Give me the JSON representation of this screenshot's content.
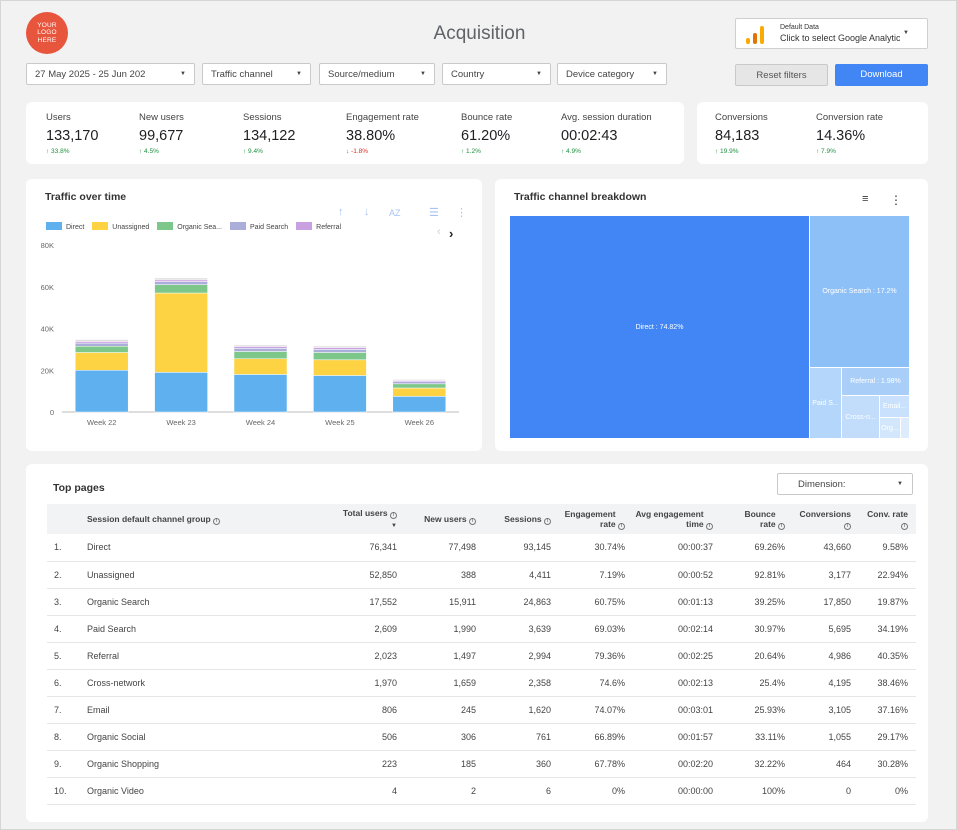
{
  "logo": {
    "text": "YOUR LOGO HERE",
    "color": "#e8553d"
  },
  "page_title": "Acquisition",
  "data_source": {
    "line1": "Default Data",
    "line2": "Click to select Google Analytics"
  },
  "filters": {
    "date_range": "27 May 2025 - 25 Jun 2025",
    "traffic_channel": "Traffic channel",
    "source_medium": "Source/medium",
    "country": "Country",
    "device_category": "Device category"
  },
  "buttons": {
    "reset": "Reset filters",
    "download": "Download"
  },
  "kpis": [
    {
      "label": "Users",
      "value": "133,170",
      "delta": "↑ 33.8%",
      "dir": "up"
    },
    {
      "label": "New users",
      "value": "99,677",
      "delta": "↑ 4.5%",
      "dir": "up"
    },
    {
      "label": "Sessions",
      "value": "134,122",
      "delta": "↑ 9.4%",
      "dir": "up"
    },
    {
      "label": "Engagement rate",
      "value": "38.80%",
      "delta": "↓ -1.8%",
      "dir": "down"
    },
    {
      "label": "Bounce rate",
      "value": "61.20%",
      "delta": "↑ 1.2%",
      "dir": "up"
    },
    {
      "label": "Avg. session duration",
      "value": "00:02:43",
      "delta": "↑ 4.9%",
      "dir": "up"
    }
  ],
  "conv_kpis": [
    {
      "label": "Conversions",
      "value": "84,183",
      "delta": "↑ 19.9%",
      "dir": "up"
    },
    {
      "label": "Conversion rate",
      "value": "14.36%",
      "delta": "↑ 7.9%",
      "dir": "up"
    }
  ],
  "traffic_over_time": {
    "title": "Traffic over time"
  },
  "treemap": {
    "title": "Traffic channel breakdown",
    "labels": {
      "direct": "Direct : 74.82%",
      "organic": "Organic Search : 17.2%",
      "referral": "Referral : 1.98%",
      "paid": "Paid S...",
      "cross": "Cross-n...",
      "email": "Email...",
      "org2": "Org..."
    }
  },
  "chart_data": {
    "type": "bar",
    "stacked": true,
    "categories": [
      "Week 22",
      "Week 23",
      "Week 24",
      "Week 25",
      "Week 26"
    ],
    "ylim": [
      0,
      80000
    ],
    "yticks": [
      "0",
      "20K",
      "40K",
      "60K",
      "80K"
    ],
    "series": [
      {
        "name": "Direct",
        "color": "#5eb0ee",
        "values": [
          20000,
          19000,
          18000,
          17500,
          7500
        ]
      },
      {
        "name": "Unassigned",
        "color": "#fdd343",
        "values": [
          8500,
          38000,
          7500,
          7500,
          4000
        ]
      },
      {
        "name": "Organic Sea...",
        "color": "#7dc78a",
        "values": [
          3000,
          4000,
          3500,
          3500,
          2000
        ]
      },
      {
        "name": "Paid Search",
        "color": "#aaaed9",
        "values": [
          1500,
          1500,
          1500,
          1500,
          1000
        ]
      },
      {
        "name": "Referral",
        "color": "#c9a0e0",
        "values": [
          800,
          800,
          900,
          900,
          600
        ]
      },
      {
        "name": "",
        "color": "#dddddd",
        "values": [
          900,
          900,
          700,
          700,
          500
        ]
      }
    ]
  },
  "top_pages": {
    "title": "Top pages",
    "dimension_label": "Dimension:",
    "headers": [
      "Session default channel group",
      "Total users",
      "New users",
      "Sessions",
      "Engagement rate",
      "Avg engagement time",
      "Bounce rate",
      "Conversions",
      "Conv. rate"
    ],
    "rows": [
      [
        "1.",
        "Direct",
        "76,341",
        "77,498",
        "93,145",
        "30.74%",
        "00:00:37",
        "69.26%",
        "43,660",
        "9.58%"
      ],
      [
        "2.",
        "Unassigned",
        "52,850",
        "388",
        "4,411",
        "7.19%",
        "00:00:52",
        "92.81%",
        "3,177",
        "22.94%"
      ],
      [
        "3.",
        "Organic Search",
        "17,552",
        "15,911",
        "24,863",
        "60.75%",
        "00:01:13",
        "39.25%",
        "17,850",
        "19.87%"
      ],
      [
        "4.",
        "Paid Search",
        "2,609",
        "1,990",
        "3,639",
        "69.03%",
        "00:02:14",
        "30.97%",
        "5,695",
        "34.19%"
      ],
      [
        "5.",
        "Referral",
        "2,023",
        "1,497",
        "2,994",
        "79.36%",
        "00:02:25",
        "20.64%",
        "4,986",
        "40.35%"
      ],
      [
        "6.",
        "Cross-network",
        "1,970",
        "1,659",
        "2,358",
        "74.6%",
        "00:02:13",
        "25.4%",
        "4,195",
        "38.46%"
      ],
      [
        "7.",
        "Email",
        "806",
        "245",
        "1,620",
        "74.07%",
        "00:03:01",
        "25.93%",
        "3,105",
        "37.16%"
      ],
      [
        "8.",
        "Organic Social",
        "506",
        "306",
        "761",
        "66.89%",
        "00:01:57",
        "33.11%",
        "1,055",
        "29.17%"
      ],
      [
        "9.",
        "Organic Shopping",
        "223",
        "185",
        "360",
        "67.78%",
        "00:02:20",
        "32.22%",
        "464",
        "30.28%"
      ],
      [
        "10.",
        "Organic Video",
        "4",
        "2",
        "6",
        "0%",
        "00:00:00",
        "100%",
        "0",
        "0%"
      ]
    ]
  }
}
